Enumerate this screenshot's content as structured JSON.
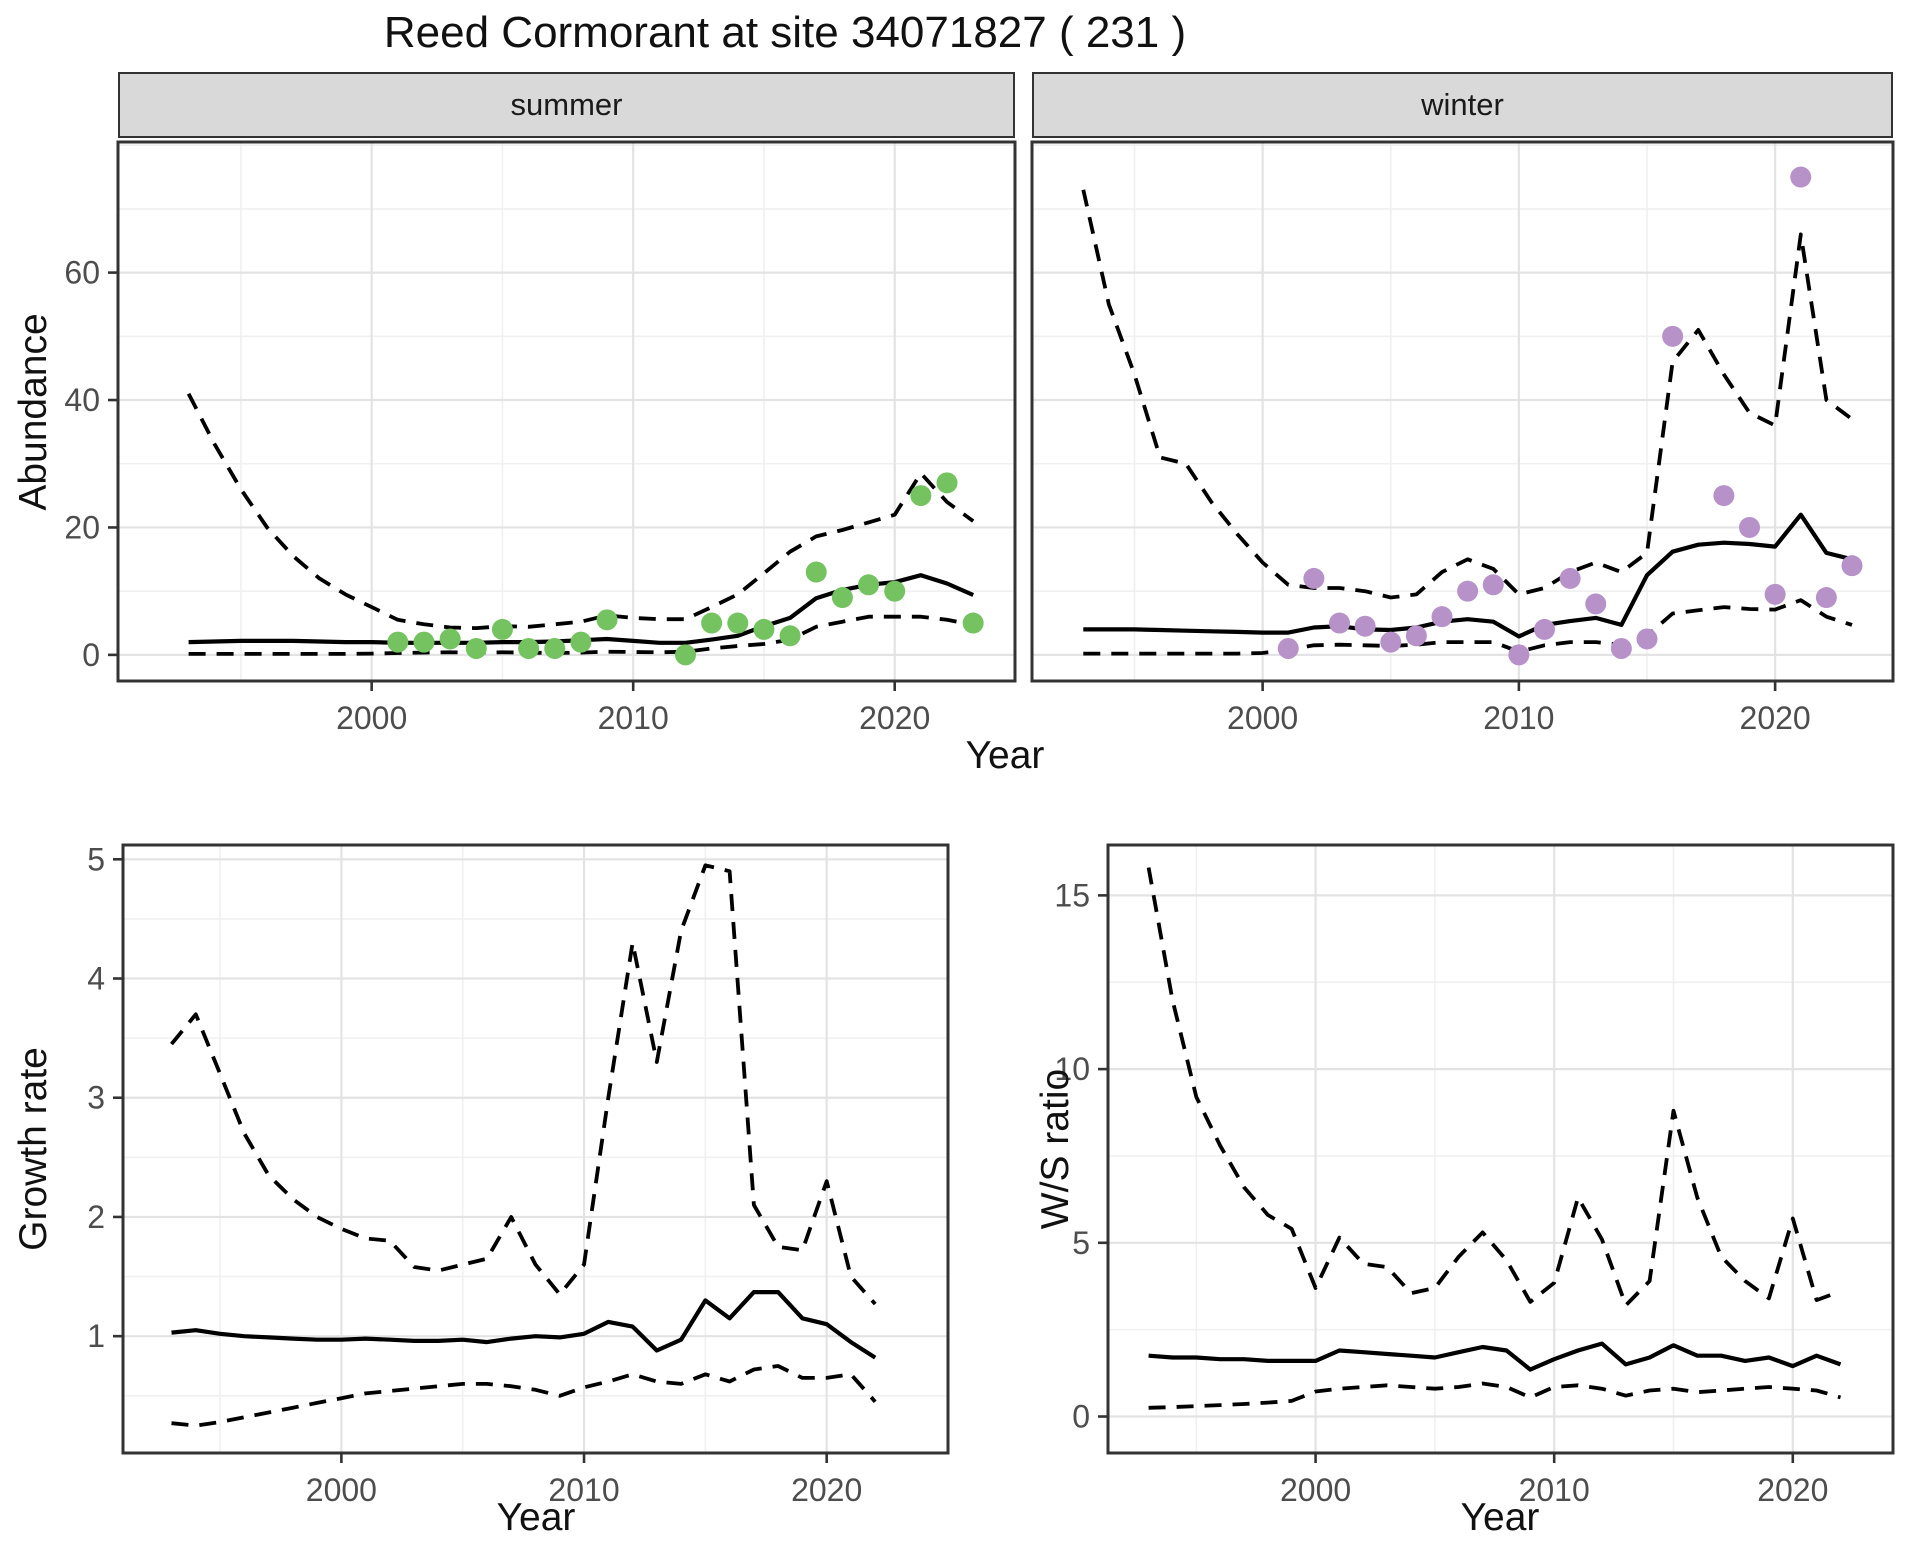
{
  "title": "Reed Cormorant at site 34071827 ( 231 )",
  "facets": {
    "summer": "summer",
    "winter": "winter"
  },
  "axes": {
    "abundance_label": "Abundance",
    "year_label_top": "Year",
    "growth_label": "Growth rate",
    "year_label_growth": "Year",
    "ws_label": "W/S ratio",
    "year_label_ws": "Year"
  },
  "colors": {
    "summer_point": "#74c260",
    "winter_point": "#b692c8",
    "line": "#000000",
    "tick_text": "#4d4d4d",
    "axis_text": "#111111",
    "strip_bg": "#d9d9d9",
    "grid_major": "#e3e3e3",
    "grid_minor": "#f0f0f0",
    "panel_border": "#333333"
  },
  "chart_data": [
    {
      "type": "line",
      "key": "abundance_summer",
      "facet_label": "summer",
      "ylabel": "Abundance",
      "xlabel": "Year",
      "x": [
        1993,
        1994,
        1995,
        1996,
        1997,
        1998,
        1999,
        2000,
        2001,
        2002,
        2003,
        2004,
        2005,
        2006,
        2007,
        2008,
        2009,
        2010,
        2011,
        2012,
        2013,
        2014,
        2015,
        2016,
        2017,
        2018,
        2019,
        2020,
        2021,
        2022,
        2023
      ],
      "series": [
        {
          "name": "upper_ci",
          "style": "dashed",
          "values": [
            41,
            33,
            26,
            20,
            15.5,
            12,
            9.5,
            7.5,
            5.5,
            4.8,
            4.3,
            4.2,
            4.5,
            4.4,
            4.8,
            5.2,
            6.2,
            5.8,
            5.6,
            5.6,
            7.5,
            9.5,
            12.8,
            16.2,
            18.6,
            19.6,
            20.8,
            22,
            28.5,
            24,
            21
          ]
        },
        {
          "name": "fit",
          "style": "solid",
          "values": [
            2,
            2.1,
            2.2,
            2.2,
            2.2,
            2.1,
            2,
            2,
            1.9,
            1.9,
            1.9,
            1.9,
            2,
            2,
            2.1,
            2.3,
            2.5,
            2.2,
            1.9,
            1.9,
            2.4,
            3,
            4.5,
            5.8,
            8.9,
            10.2,
            11,
            11.4,
            12.5,
            11.2,
            9.4
          ]
        },
        {
          "name": "lower_ci",
          "style": "dashed",
          "values": [
            0.15,
            0.15,
            0.15,
            0.15,
            0.15,
            0.15,
            0.15,
            0.2,
            0.3,
            0.35,
            0.4,
            0.35,
            0.4,
            0.35,
            0.3,
            0.35,
            0.5,
            0.45,
            0.4,
            0.5,
            1,
            1.4,
            1.7,
            2.4,
            4.4,
            5.2,
            6,
            6,
            6,
            5.5,
            4.7
          ]
        }
      ],
      "points": {
        "name": "summer_observations",
        "color_key": "summer_point",
        "x": [
          2001,
          2002,
          2003,
          2004,
          2005,
          2006,
          2007,
          2008,
          2009,
          2012,
          2013,
          2014,
          2015,
          2016,
          2017,
          2018,
          2019,
          2020,
          2021,
          2022,
          2023
        ],
        "y": [
          2,
          2,
          2.5,
          1,
          4,
          1,
          1,
          2,
          5.5,
          0,
          5,
          5,
          4,
          3,
          13,
          9,
          11,
          10,
          25,
          27,
          5
        ]
      },
      "xlim": [
        1990.3,
        2024.6
      ],
      "ylim": [
        -4.1,
        80.5
      ],
      "xticks": [
        2000,
        2010,
        2020
      ],
      "yticks": [
        0,
        20,
        40,
        60
      ],
      "x_minor": [
        1995,
        2005,
        2015
      ],
      "y_minor": [
        10,
        30,
        50,
        70,
        80
      ],
      "show_y_labels": true,
      "grid": true,
      "legend": "none"
    },
    {
      "type": "line",
      "key": "abundance_winter",
      "facet_label": "winter",
      "ylabel": "Abundance",
      "xlabel": "Year",
      "x": [
        1993,
        1994,
        1995,
        1996,
        1997,
        1998,
        1999,
        2000,
        2001,
        2002,
        2003,
        2004,
        2005,
        2006,
        2007,
        2008,
        2009,
        2010,
        2011,
        2012,
        2013,
        2014,
        2015,
        2016,
        2017,
        2018,
        2019,
        2020,
        2021,
        2022,
        2023
      ],
      "series": [
        {
          "name": "upper_ci",
          "style": "dashed",
          "values": [
            73,
            55,
            44,
            31,
            30,
            24,
            19,
            14.5,
            11,
            10.5,
            10.5,
            10,
            9,
            9.5,
            13,
            15,
            13.5,
            9.5,
            10.5,
            13,
            14.5,
            13,
            16,
            46,
            51,
            44,
            38,
            36,
            66,
            40,
            37
          ]
        },
        {
          "name": "fit",
          "style": "solid",
          "values": [
            4,
            4,
            4,
            3.9,
            3.8,
            3.7,
            3.6,
            3.5,
            3.5,
            4.3,
            4.5,
            4,
            3.9,
            4.3,
            5.2,
            5.6,
            5.2,
            2.9,
            4.7,
            5.3,
            5.8,
            4.7,
            12.5,
            16.2,
            17.3,
            17.6,
            17.4,
            17,
            22,
            16,
            15
          ]
        },
        {
          "name": "lower_ci",
          "style": "dashed",
          "values": [
            0.2,
            0.2,
            0.2,
            0.2,
            0.2,
            0.2,
            0.2,
            0.3,
            0.8,
            1.5,
            1.6,
            1.5,
            1.4,
            1.6,
            2,
            2,
            2,
            0.5,
            1.5,
            2,
            2,
            1.6,
            3,
            6.5,
            7,
            7.5,
            7.2,
            7.1,
            8.6,
            6,
            4.7
          ]
        }
      ],
      "points": {
        "name": "winter_observations",
        "color_key": "winter_point",
        "x": [
          2001,
          2002,
          2003,
          2004,
          2005,
          2006,
          2007,
          2008,
          2009,
          2010,
          2011,
          2012,
          2013,
          2014,
          2015,
          2016,
          2018,
          2019,
          2020,
          2021,
          2022,
          2023
        ],
        "y": [
          1,
          12,
          5,
          4.5,
          2,
          3,
          6,
          10,
          11,
          0,
          4,
          12,
          8,
          1,
          2.5,
          50,
          25,
          20,
          9.5,
          75,
          9,
          14
        ]
      },
      "xlim": [
        1991.0,
        2024.6
      ],
      "ylim": [
        -4.1,
        80.5
      ],
      "xticks": [
        2000,
        2010,
        2020
      ],
      "yticks": [
        0,
        20,
        40,
        60
      ],
      "x_minor": [
        1995,
        2005,
        2015
      ],
      "y_minor": [
        10,
        30,
        50,
        70,
        80
      ],
      "show_y_labels": false,
      "grid": true,
      "legend": "none"
    },
    {
      "type": "line",
      "key": "growth_rate",
      "facet_label": "",
      "ylabel": "Growth rate",
      "xlabel": "Year",
      "x": [
        1993,
        1994,
        1995,
        1996,
        1997,
        1998,
        1999,
        2000,
        2001,
        2002,
        2003,
        2004,
        2005,
        2006,
        2007,
        2008,
        2009,
        2010,
        2011,
        2012,
        2013,
        2014,
        2015,
        2016,
        2017,
        2018,
        2019,
        2020,
        2021,
        2022
      ],
      "series": [
        {
          "name": "upper_ci",
          "style": "dashed",
          "values": [
            3.45,
            3.7,
            3.2,
            2.7,
            2.35,
            2.15,
            2,
            1.9,
            1.82,
            1.8,
            1.58,
            1.55,
            1.6,
            1.65,
            2,
            1.6,
            1.35,
            1.6,
            3,
            4.3,
            3.3,
            4.4,
            4.95,
            4.9,
            2.1,
            1.75,
            1.72,
            2.3,
            1.5,
            1.27
          ]
        },
        {
          "name": "fit",
          "style": "solid",
          "values": [
            1.03,
            1.05,
            1.02,
            1,
            0.99,
            0.98,
            0.97,
            0.97,
            0.98,
            0.97,
            0.96,
            0.96,
            0.97,
            0.95,
            0.98,
            1,
            0.99,
            1.02,
            1.12,
            1.08,
            0.88,
            0.97,
            1.3,
            1.15,
            1.37,
            1.37,
            1.15,
            1.1,
            0.95,
            0.82
          ]
        },
        {
          "name": "lower_ci",
          "style": "dashed",
          "values": [
            0.27,
            0.25,
            0.28,
            0.32,
            0.36,
            0.4,
            0.44,
            0.48,
            0.52,
            0.54,
            0.56,
            0.58,
            0.6,
            0.6,
            0.58,
            0.55,
            0.5,
            0.57,
            0.62,
            0.68,
            0.62,
            0.6,
            0.68,
            0.62,
            0.72,
            0.75,
            0.65,
            0.65,
            0.68,
            0.45
          ]
        }
      ],
      "points": null,
      "xlim": [
        1991.0,
        2025.0
      ],
      "ylim": [
        0.02,
        5.12
      ],
      "xticks": [
        2000,
        2010,
        2020
      ],
      "yticks": [
        1,
        2,
        3,
        4,
        5
      ],
      "x_minor": [
        1995,
        2005,
        2015
      ],
      "y_minor": [
        0.5,
        1.5,
        2.5,
        3.5,
        4.5
      ],
      "show_y_labels": true,
      "grid": true,
      "legend": "none"
    },
    {
      "type": "line",
      "key": "ws_ratio",
      "facet_label": "",
      "ylabel": "W/S ratio",
      "xlabel": "Year",
      "x": [
        1993,
        1994,
        1995,
        1996,
        1997,
        1998,
        1999,
        2000,
        2001,
        2002,
        2003,
        2004,
        2005,
        2006,
        2007,
        2008,
        2009,
        2010,
        2011,
        2012,
        2013,
        2014,
        2015,
        2016,
        2017,
        2018,
        2019,
        2020,
        2021,
        2022
      ],
      "series": [
        {
          "name": "upper_ci",
          "style": "dashed",
          "values": [
            15.8,
            12,
            9.2,
            7.8,
            6.6,
            5.8,
            5.4,
            3.7,
            5.15,
            4.4,
            4.3,
            3.55,
            3.7,
            4.6,
            5.3,
            4.5,
            3.3,
            3.85,
            6.3,
            5.1,
            3.2,
            3.9,
            8.8,
            6.3,
            4.6,
            3.9,
            3.4,
            5.7,
            3.35,
            3.6
          ]
        },
        {
          "name": "fit",
          "style": "solid",
          "values": [
            1.75,
            1.7,
            1.7,
            1.65,
            1.65,
            1.6,
            1.6,
            1.6,
            1.9,
            1.85,
            1.8,
            1.75,
            1.7,
            1.85,
            2,
            1.9,
            1.35,
            1.65,
            1.9,
            2.1,
            1.5,
            1.7,
            2.05,
            1.75,
            1.75,
            1.6,
            1.7,
            1.45,
            1.75,
            1.5
          ]
        },
        {
          "name": "lower_ci",
          "style": "dashed",
          "values": [
            0.25,
            0.27,
            0.3,
            0.33,
            0.36,
            0.4,
            0.45,
            0.72,
            0.8,
            0.85,
            0.9,
            0.85,
            0.8,
            0.85,
            0.95,
            0.85,
            0.55,
            0.85,
            0.9,
            0.8,
            0.6,
            0.75,
            0.8,
            0.7,
            0.75,
            0.8,
            0.85,
            0.8,
            0.75,
            0.55
          ]
        }
      ],
      "points": null,
      "xlim": [
        1991.3,
        2024.2
      ],
      "ylim": [
        -1.05,
        16.45
      ],
      "xticks": [
        2000,
        2010,
        2020
      ],
      "yticks": [
        0,
        5,
        10,
        15
      ],
      "x_minor": [
        1995,
        2005,
        2015
      ],
      "y_minor": [
        2.5,
        7.5,
        12.5
      ],
      "show_y_labels": true,
      "grid": true,
      "legend": "none"
    }
  ]
}
